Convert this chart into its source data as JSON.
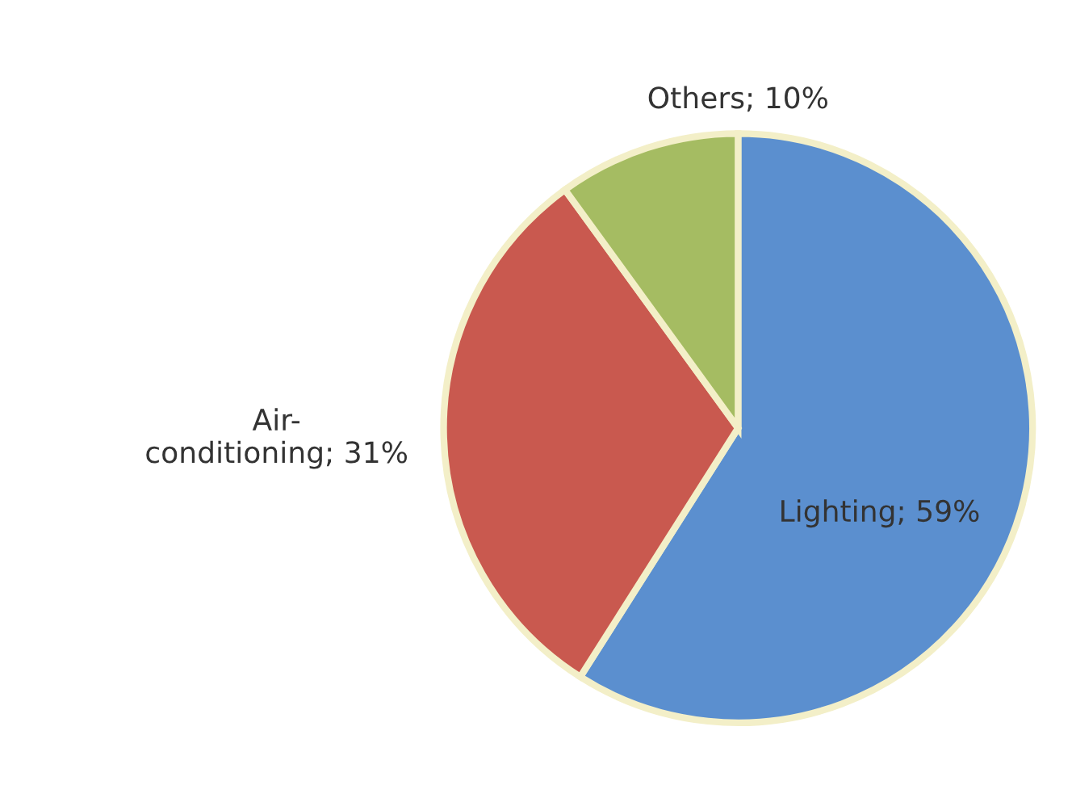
{
  "chart_data": {
    "type": "pie",
    "categories": [
      "Lighting",
      "Air-conditioning",
      "Others"
    ],
    "values": [
      59,
      31,
      10
    ],
    "value_labels": [
      "59%",
      "31%",
      "10%"
    ],
    "colors": [
      "#5b8fcf",
      "#c9594f",
      "#a5bc62"
    ]
  }
}
